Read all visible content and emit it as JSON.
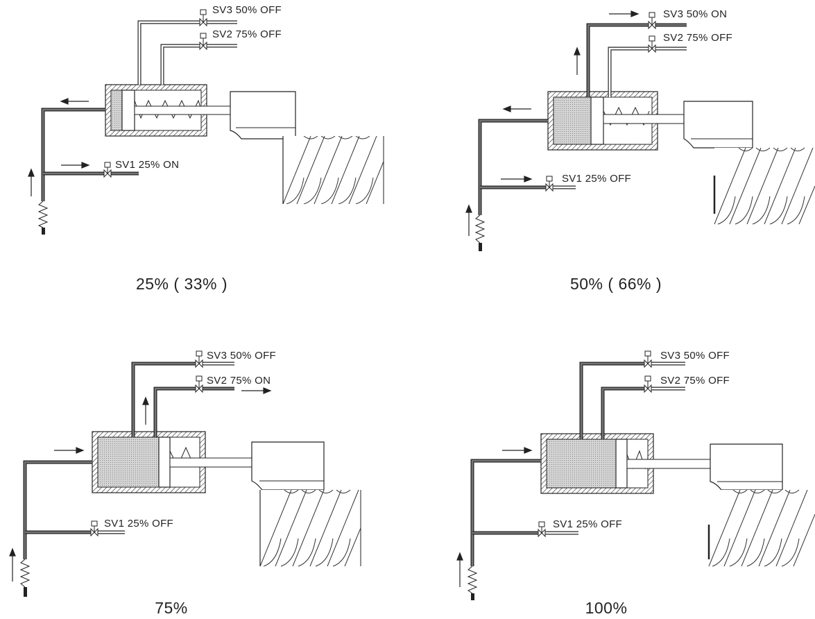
{
  "colors": {
    "line": "#222222",
    "pipe_fill": "#555555",
    "chamber_fill": "#d0d0d0",
    "background": "#ffffff"
  },
  "panels": [
    {
      "caption": "25% ( 33% )",
      "piston_fill": 0.12,
      "valves": [
        {
          "label": "SV3 50% OFF",
          "state": "off"
        },
        {
          "label": "SV2 75% OFF",
          "state": "off"
        },
        {
          "label": "SV1 25% ON",
          "state": "on"
        }
      ]
    },
    {
      "caption": "50% ( 66% )",
      "piston_fill": 0.4,
      "valves": [
        {
          "label": "SV3 50% ON",
          "state": "on"
        },
        {
          "label": "SV2 75% OFF",
          "state": "off"
        },
        {
          "label": "SV1 25% OFF",
          "state": "off"
        }
      ]
    },
    {
      "caption": "75%",
      "piston_fill": 0.55,
      "valves": [
        {
          "label": "SV3 50% OFF",
          "state": "off"
        },
        {
          "label": "SV2 75% ON",
          "state": "on"
        },
        {
          "label": "SV1 25% OFF",
          "state": "off"
        }
      ]
    },
    {
      "caption": "100%",
      "piston_fill": 0.72,
      "valves": [
        {
          "label": "SV3 50% OFF",
          "state": "off"
        },
        {
          "label": "SV2 75% OFF",
          "state": "off"
        },
        {
          "label": "SV1 25% OFF",
          "state": "off"
        }
      ]
    }
  ]
}
